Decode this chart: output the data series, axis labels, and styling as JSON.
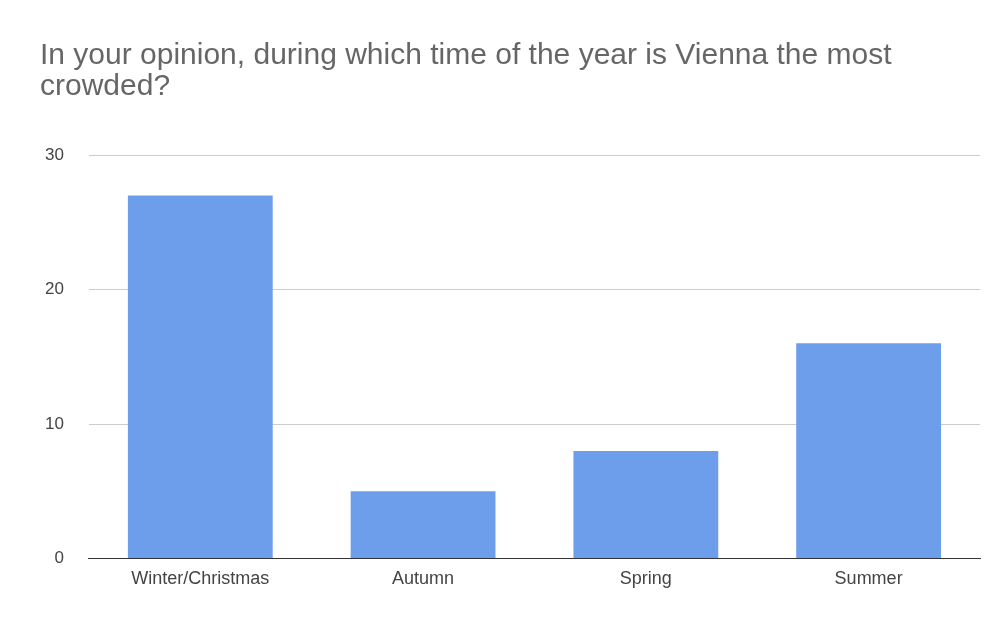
{
  "chart_data": {
    "type": "bar",
    "title": "In your opinion, during which time of the year is Vienna the most crowded?",
    "categories": [
      "Winter/Christmas",
      "Autumn",
      "Spring",
      "Summer"
    ],
    "values": [
      27,
      5,
      8,
      16
    ],
    "color": "#6d9eeb",
    "ylim": [
      0,
      30
    ],
    "yticks": [
      0,
      10,
      20,
      30
    ],
    "grid": "y"
  }
}
